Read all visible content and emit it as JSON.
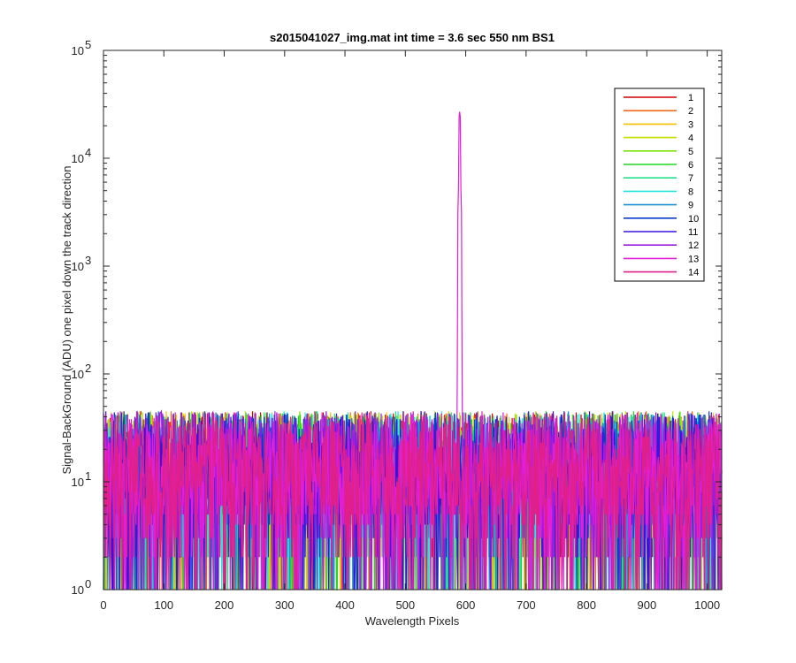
{
  "chart_data": {
    "type": "line",
    "title": "s2015041027_img.mat int time = 3.6 sec  550 nm BS1",
    "xlabel": "Wavelength Pixels",
    "ylabel": "Signal-BackGround (ADU) one pixel down the track direction",
    "xlim": [
      0,
      1024
    ],
    "ylim": [
      1,
      100000
    ],
    "yscale": "log",
    "x_ticks": [
      0,
      100,
      200,
      300,
      400,
      500,
      600,
      700,
      800,
      900,
      1000
    ],
    "x_tick_labels": [
      "0",
      "100",
      "200",
      "300",
      "400",
      "500",
      "600",
      "700",
      "800",
      "900",
      "1000"
    ],
    "y_ticks": [
      1,
      10,
      100,
      1000,
      10000,
      100000
    ],
    "y_tick_bases": [
      "10",
      "10",
      "10",
      "10",
      "10",
      "10"
    ],
    "y_tick_exponents": [
      "0",
      "1",
      "2",
      "3",
      "4",
      "5"
    ],
    "grid": false,
    "legend_position": "top-right",
    "noise_floor": {
      "typical_min": 1,
      "typical_max": 45,
      "typical_center": 10
    },
    "series": [
      {
        "name": "1",
        "color": "#d40000"
      },
      {
        "name": "2",
        "color": "#f26b1d"
      },
      {
        "name": "3",
        "color": "#f2c200"
      },
      {
        "name": "4",
        "color": "#c8e000"
      },
      {
        "name": "5",
        "color": "#7ee000"
      },
      {
        "name": "6",
        "color": "#20d820"
      },
      {
        "name": "7",
        "color": "#25e08a"
      },
      {
        "name": "8",
        "color": "#24e6e0"
      },
      {
        "name": "9",
        "color": "#1e90d6"
      },
      {
        "name": "10",
        "color": "#0a3ad0"
      },
      {
        "name": "11",
        "color": "#3a12e0"
      },
      {
        "name": "12",
        "color": "#9a1ee0"
      },
      {
        "name": "13",
        "color": "#e21ed8"
      },
      {
        "name": "14",
        "color": "#e0208a"
      }
    ],
    "peak": {
      "series": "13",
      "x": 590,
      "y": 27000
    }
  }
}
